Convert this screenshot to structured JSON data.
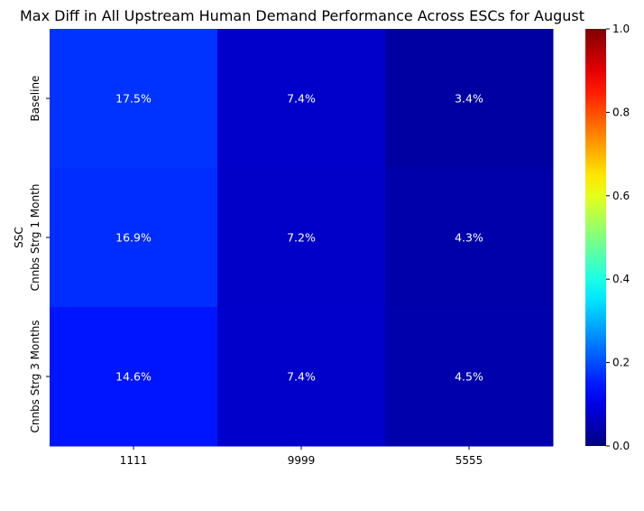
{
  "chart_data": {
    "type": "heatmap",
    "title": "Max Diff in All Upstream Human Demand Performance Across ESCs for August",
    "xlabel": "",
    "ylabel": "SSC",
    "x_categories": [
      "1111",
      "9999",
      "5555"
    ],
    "y_categories": [
      "Baseline",
      "Cnnbs Strg 1 Month",
      "Cnnbs Strg 3 Months"
    ],
    "values": [
      [
        0.175,
        0.074,
        0.034
      ],
      [
        0.169,
        0.072,
        0.043
      ],
      [
        0.146,
        0.074,
        0.045
      ]
    ],
    "cell_labels": [
      [
        "17.5%",
        "7.4%",
        "3.4%"
      ],
      [
        "16.9%",
        "7.2%",
        "4.3%"
      ],
      [
        "14.6%",
        "7.4%",
        "4.5%"
      ]
    ],
    "colormap": "jet",
    "colorbar": {
      "min": 0.0,
      "max": 1.0,
      "ticks": [
        0.0,
        0.2,
        0.4,
        0.6,
        0.8,
        1.0
      ],
      "tick_labels": [
        "0.0",
        "0.2",
        "0.4",
        "0.6",
        "0.8",
        "1.0"
      ]
    },
    "annotation_color": "#ffffff"
  }
}
